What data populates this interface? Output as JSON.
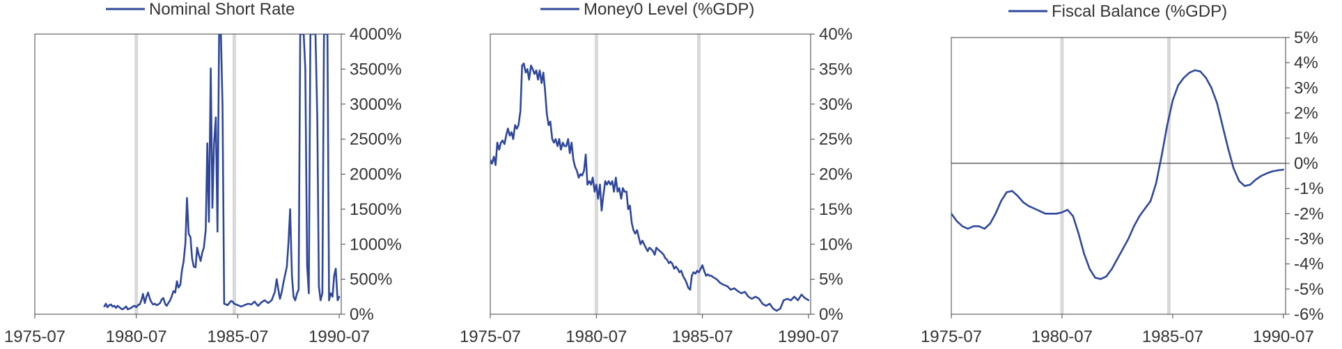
{
  "colors": {
    "series": "#2e479b",
    "frame": "#404040",
    "shade": "#d9d9d9",
    "text": "#333333"
  },
  "chart_data": [
    {
      "type": "line",
      "legend": "Nominal Short Rate",
      "legend_position": "top",
      "xlim": [
        1975.5,
        1990.6
      ],
      "x_tick_labels": [
        "1975-07",
        "1980-07",
        "1985-07",
        "1990-07"
      ],
      "x_tick_values": [
        1975.5,
        1980.5,
        1985.5,
        1990.5
      ],
      "ylim": [
        0,
        4000
      ],
      "y_unit": "%",
      "y_axis_side": "right",
      "y_tick_labels": [
        "0%",
        "500%",
        "1000%",
        "1500%",
        "2000%",
        "2500%",
        "3000%",
        "3500%",
        "4000%"
      ],
      "y_tick_values": [
        0,
        500,
        1000,
        1500,
        2000,
        2500,
        3000,
        3500,
        4000
      ],
      "grid": false,
      "shaded_dates": [
        1980.5,
        1985.33
      ],
      "series": [
        {
          "x": [
            1978.92,
            1979.0,
            1979.08,
            1979.17,
            1979.25,
            1979.33,
            1979.42,
            1979.5,
            1979.58,
            1979.67,
            1979.75,
            1979.83,
            1979.92,
            1980.0,
            1980.08,
            1980.17,
            1980.25,
            1980.33,
            1980.42,
            1980.5,
            1980.58,
            1980.67,
            1980.75,
            1980.83,
            1980.92,
            1981.0,
            1981.08,
            1981.17,
            1981.25,
            1981.33,
            1981.42,
            1981.5,
            1981.58,
            1981.67,
            1981.75,
            1981.83,
            1981.92,
            1982.0,
            1982.08,
            1982.17,
            1982.25,
            1982.33,
            1982.42,
            1982.5,
            1982.58,
            1982.67,
            1982.75,
            1982.83,
            1982.92,
            1983.0,
            1983.08,
            1983.17,
            1983.25,
            1983.33,
            1983.42,
            1983.5,
            1983.58,
            1983.67,
            1983.75,
            1983.83,
            1983.92,
            1984.0,
            1984.08,
            1984.17,
            1984.25,
            1984.33,
            1984.42,
            1984.5,
            1984.58,
            1984.67,
            1984.75,
            1984.83,
            1984.92,
            1985.0,
            1985.08,
            1985.17,
            1985.25,
            1985.33,
            1985.5,
            1985.67,
            1985.83,
            1986.0,
            1986.17,
            1986.33,
            1986.5,
            1986.67,
            1986.83,
            1987.0,
            1987.17,
            1987.33,
            1987.42,
            1987.5,
            1987.58,
            1987.67,
            1987.75,
            1987.83,
            1987.92,
            1988.0,
            1988.08,
            1988.17,
            1988.25,
            1988.33,
            1988.42,
            1988.5,
            1988.58,
            1988.67,
            1988.75,
            1988.83,
            1988.92,
            1989.0,
            1989.08,
            1989.17,
            1989.25,
            1989.33,
            1989.42,
            1989.5,
            1989.58,
            1989.67,
            1989.75,
            1989.83,
            1989.92,
            1990.0,
            1990.08,
            1990.17,
            1990.25,
            1990.33,
            1990.42,
            1990.5
          ],
          "y": [
            110,
            150,
            100,
            130,
            140,
            110,
            120,
            90,
            120,
            100,
            80,
            70,
            90,
            110,
            70,
            80,
            90,
            110,
            120,
            100,
            130,
            140,
            200,
            290,
            160,
            250,
            310,
            220,
            170,
            140,
            150,
            130,
            140,
            160,
            210,
            230,
            150,
            120,
            160,
            200,
            260,
            330,
            310,
            470,
            380,
            420,
            630,
            750,
            1010,
            1660,
            1150,
            1100,
            800,
            680,
            670,
            950,
            850,
            760,
            880,
            950,
            1200,
            2440,
            1320,
            3510,
            1520,
            2430,
            2810,
            1180,
            4000,
            4000,
            3000,
            150,
            140,
            130,
            160,
            190,
            180,
            150,
            130,
            110,
            130,
            150,
            140,
            180,
            120,
            170,
            200,
            160,
            200,
            320,
            500,
            350,
            220,
            320,
            450,
            560,
            680,
            1020,
            1500,
            550,
            250,
            200,
            300,
            350,
            4000,
            4000,
            4000,
            3500,
            700,
            300,
            4000,
            4000,
            4000,
            4000,
            2800,
            400,
            200,
            300,
            4000,
            4000,
            4000,
            200,
            300,
            250,
            550,
            650,
            200,
            250
          ]
        }
      ]
    },
    {
      "type": "line",
      "legend": "Money0 Level (%GDP)",
      "legend_position": "top",
      "xlim": [
        1975.5,
        1990.6
      ],
      "x_tick_labels": [
        "1975-07",
        "1980-07",
        "1985-07",
        "1990-07"
      ],
      "x_tick_values": [
        1975.5,
        1980.5,
        1985.5,
        1990.5
      ],
      "ylim": [
        0,
        40
      ],
      "y_unit": "%",
      "y_axis_side": "right",
      "y_tick_labels": [
        "0%",
        "5%",
        "10%",
        "15%",
        "20%",
        "25%",
        "30%",
        "35%",
        "40%"
      ],
      "y_tick_values": [
        0,
        5,
        10,
        15,
        20,
        25,
        30,
        35,
        40
      ],
      "grid": false,
      "shaded_dates": [
        1980.5,
        1985.33
      ],
      "series": [
        {
          "x": [
            1975.5,
            1975.58,
            1975.67,
            1975.75,
            1975.83,
            1975.92,
            1976.0,
            1976.08,
            1976.17,
            1976.25,
            1976.33,
            1976.42,
            1976.5,
            1976.58,
            1976.67,
            1976.75,
            1976.83,
            1976.92,
            1977.0,
            1977.08,
            1977.17,
            1977.25,
            1977.33,
            1977.42,
            1977.5,
            1977.58,
            1977.67,
            1977.75,
            1977.83,
            1977.92,
            1978.0,
            1978.08,
            1978.17,
            1978.25,
            1978.33,
            1978.42,
            1978.5,
            1978.58,
            1978.67,
            1978.75,
            1978.83,
            1978.92,
            1979.0,
            1979.08,
            1979.17,
            1979.25,
            1979.33,
            1979.42,
            1979.5,
            1979.58,
            1979.67,
            1979.75,
            1979.83,
            1979.92,
            1980.0,
            1980.08,
            1980.17,
            1980.25,
            1980.33,
            1980.42,
            1980.5,
            1980.58,
            1980.67,
            1980.75,
            1980.83,
            1980.92,
            1981.0,
            1981.08,
            1981.17,
            1981.25,
            1981.33,
            1981.42,
            1981.5,
            1981.58,
            1981.67,
            1981.75,
            1981.83,
            1981.92,
            1982.0,
            1982.08,
            1982.17,
            1982.25,
            1982.33,
            1982.42,
            1982.5,
            1982.58,
            1982.67,
            1982.75,
            1982.83,
            1982.92,
            1983.0,
            1983.08,
            1983.17,
            1983.25,
            1983.33,
            1983.42,
            1983.5,
            1983.58,
            1983.67,
            1983.75,
            1983.83,
            1983.92,
            1984.0,
            1984.08,
            1984.17,
            1984.25,
            1984.33,
            1984.42,
            1984.5,
            1984.58,
            1984.67,
            1984.75,
            1984.83,
            1984.92,
            1985.0,
            1985.08,
            1985.17,
            1985.25,
            1985.33,
            1985.42,
            1985.5,
            1985.58,
            1985.67,
            1985.75,
            1985.83,
            1985.92,
            1986.0,
            1986.17,
            1986.33,
            1986.5,
            1986.67,
            1986.83,
            1987.0,
            1987.17,
            1987.33,
            1987.5,
            1987.67,
            1987.83,
            1988.0,
            1988.17,
            1988.33,
            1988.5,
            1988.67,
            1988.83,
            1989.0,
            1989.17,
            1989.33,
            1989.5,
            1989.67,
            1989.83,
            1990.0,
            1990.17,
            1990.33,
            1990.5
          ],
          "y": [
            22,
            21.5,
            22.5,
            21.3,
            24.5,
            23.5,
            24.5,
            24.8,
            24.3,
            25.5,
            26.5,
            25.5,
            26,
            25,
            27,
            26.5,
            27,
            29,
            35.5,
            35.8,
            34.5,
            35,
            33.5,
            35.5,
            35,
            34.3,
            34.8,
            33.5,
            34.8,
            33,
            34.5,
            32,
            28.5,
            27,
            27.5,
            25,
            24.5,
            25,
            24,
            25,
            23.5,
            24.5,
            24,
            24,
            25,
            23,
            24.5,
            22,
            21,
            20.5,
            19.5,
            20,
            19.8,
            20.5,
            22.8,
            18.5,
            19,
            18.5,
            19.5,
            17.5,
            18.5,
            16.5,
            18.5,
            14.8,
            17,
            19,
            18.5,
            19,
            18.5,
            19,
            17.5,
            19.5,
            17.5,
            18,
            16.5,
            18,
            17.5,
            17.5,
            15,
            15.5,
            13,
            12,
            11.5,
            12,
            11,
            10,
            10.5,
            10,
            9.5,
            9,
            9.5,
            9.3,
            9,
            8.5,
            9.5,
            9.2,
            9,
            8.8,
            8.5,
            8,
            7.8,
            7.3,
            7.5,
            7.2,
            6.5,
            6.8,
            6.5,
            6,
            6.2,
            5.5,
            5,
            4.5,
            3.8,
            3.5,
            5.5,
            6,
            5.8,
            6.2,
            6,
            6.5,
            7,
            6.2,
            5.5,
            5.7,
            5.5,
            5.5,
            5.3,
            5,
            4.5,
            4.2,
            4,
            3.5,
            3.7,
            3.3,
            3,
            3.2,
            2.5,
            2.2,
            2.5,
            2.2,
            1.5,
            1.2,
            1.5,
            0.8,
            0.5,
            0.8,
            2,
            2.2,
            2,
            2.5,
            2,
            2.8,
            2.3,
            2
          ]
        }
      ]
    },
    {
      "type": "line",
      "legend": "Fiscal Balance (%GDP)",
      "legend_position": "top",
      "xlim": [
        1975.5,
        1990.6
      ],
      "x_tick_labels": [
        "1975-07",
        "1980-07",
        "1985-07",
        "1990-07"
      ],
      "x_tick_values": [
        1975.5,
        1980.5,
        1985.5,
        1990.5
      ],
      "ylim": [
        -6,
        5
      ],
      "y_unit": "%",
      "y_axis_side": "right",
      "y_tick_labels": [
        "-6%",
        "-5%",
        "-4%",
        "-3%",
        "-2%",
        "-1%",
        "0%",
        "1%",
        "2%",
        "3%",
        "4%",
        "5%"
      ],
      "y_tick_values": [
        -6,
        -5,
        -4,
        -3,
        -2,
        -1,
        0,
        1,
        2,
        3,
        4,
        5
      ],
      "zero_line": true,
      "grid": false,
      "shaded_dates": [
        1980.5,
        1985.33
      ],
      "series": [
        {
          "x": [
            1975.5,
            1975.75,
            1976.0,
            1976.25,
            1976.5,
            1976.75,
            1977.0,
            1977.25,
            1977.5,
            1977.75,
            1978.0,
            1978.25,
            1978.5,
            1978.75,
            1979.0,
            1979.25,
            1979.5,
            1979.75,
            1980.0,
            1980.25,
            1980.5,
            1980.75,
            1981.0,
            1981.25,
            1981.5,
            1981.75,
            1982.0,
            1982.25,
            1982.5,
            1982.75,
            1983.0,
            1983.25,
            1983.5,
            1983.75,
            1984.0,
            1984.25,
            1984.5,
            1984.75,
            1985.0,
            1985.25,
            1985.5,
            1985.75,
            1986.0,
            1986.25,
            1986.5,
            1986.75,
            1987.0,
            1987.25,
            1987.5,
            1987.75,
            1988.0,
            1988.25,
            1988.5,
            1988.75,
            1989.0,
            1989.25,
            1989.5,
            1989.75,
            1990.0,
            1990.25,
            1990.5
          ],
          "y": [
            -2.0,
            -2.3,
            -2.5,
            -2.6,
            -2.5,
            -2.5,
            -2.6,
            -2.4,
            -2.0,
            -1.5,
            -1.15,
            -1.1,
            -1.3,
            -1.55,
            -1.7,
            -1.8,
            -1.9,
            -2.0,
            -2.0,
            -2.0,
            -1.95,
            -1.85,
            -2.1,
            -2.8,
            -3.6,
            -4.2,
            -4.55,
            -4.6,
            -4.5,
            -4.2,
            -3.8,
            -3.4,
            -3.0,
            -2.5,
            -2.1,
            -1.8,
            -1.5,
            -0.8,
            0.3,
            1.5,
            2.5,
            3.1,
            3.4,
            3.6,
            3.7,
            3.65,
            3.4,
            3.0,
            2.4,
            1.5,
            0.6,
            -0.2,
            -0.7,
            -0.9,
            -0.85,
            -0.65,
            -0.5,
            -0.4,
            -0.32,
            -0.28,
            -0.25
          ]
        }
      ]
    }
  ]
}
